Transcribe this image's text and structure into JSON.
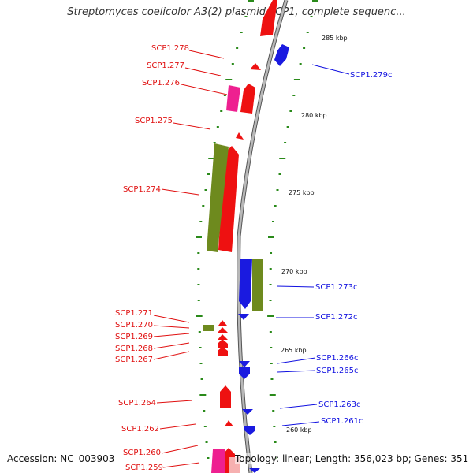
{
  "title": "Streptomyces coelicolor A3(2) plasmid SCP1, complete sequenc...",
  "accession": "Accession: NC_003903",
  "summary": "Topology: linear; Length: 356,023 bp; Genes: 351",
  "colors": {
    "forward": "#ee1111",
    "reverse": "#1a1ae0",
    "pseudo": "#6e8a1e",
    "rna": "#ee2090",
    "backbone": "#8a8a8a",
    "tick": "#2a8a1a"
  },
  "kbp_marks": [
    "285 kbp",
    "280 kbp",
    "275 kbp",
    "270 kbp",
    "265 kbp",
    "260 kbp"
  ],
  "forward_genes": [
    "SCP1.278",
    "SCP1.277",
    "SCP1.276",
    "SCP1.275",
    "SCP1.274",
    "SCP1.271",
    "SCP1.270",
    "SCP1.269",
    "SCP1.268",
    "SCP1.267",
    "SCP1.264",
    "SCP1.262",
    "SCP1.260",
    "SCP1.259"
  ],
  "reverse_genes": [
    "SCP1.279c",
    "SCP1.273c",
    "SCP1.272c",
    "SCP1.266c",
    "SCP1.265c",
    "SCP1.263c",
    "SCP1.261c"
  ]
}
